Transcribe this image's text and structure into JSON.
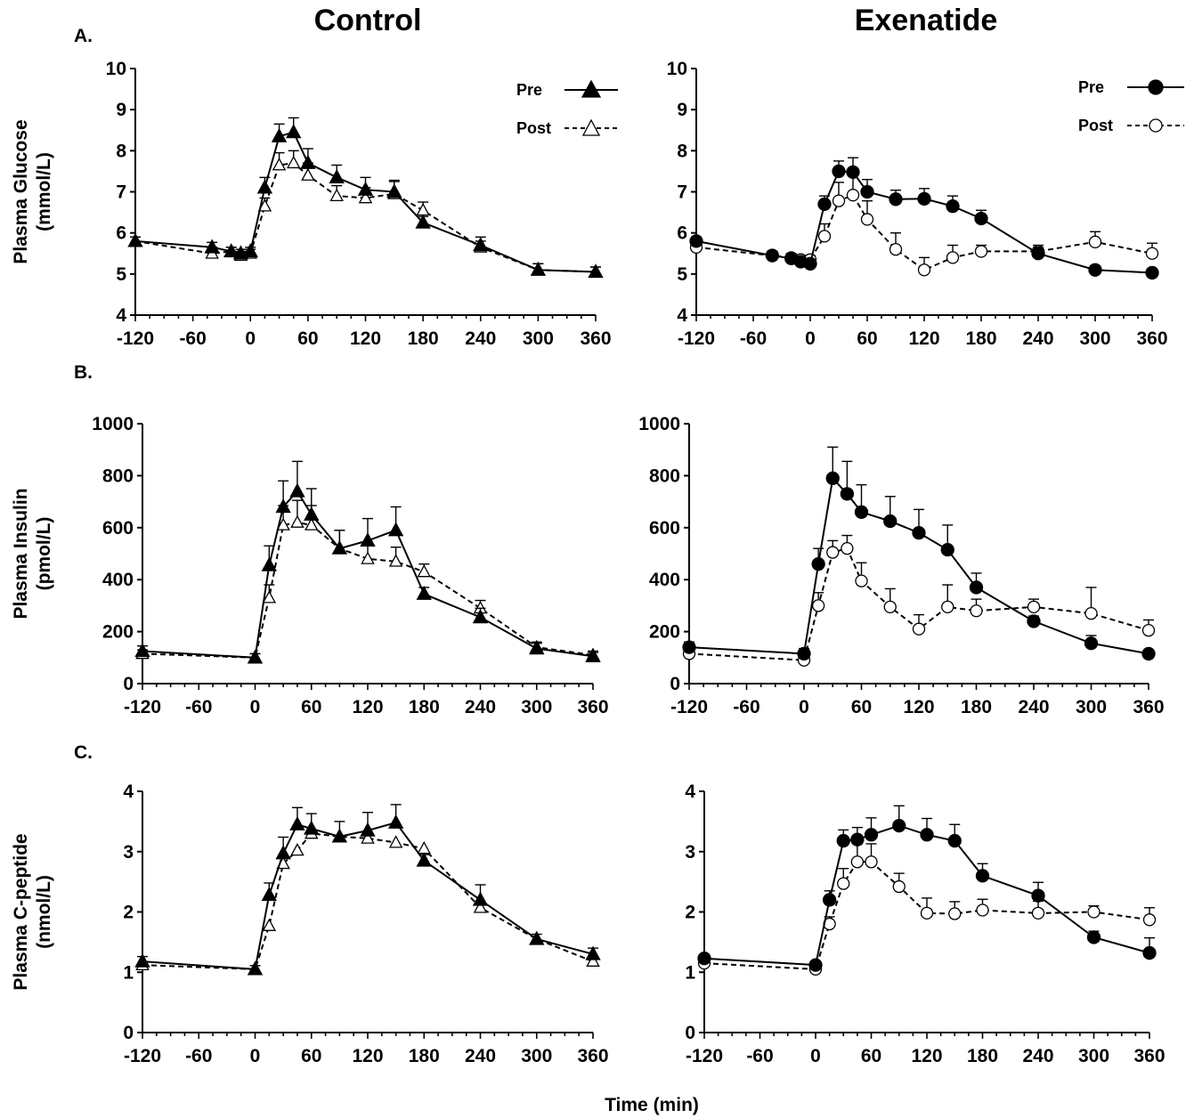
{
  "figure": {
    "column_titles": [
      "Control",
      "Exenatide"
    ],
    "panel_letters": [
      "A.",
      "B.",
      "C."
    ],
    "xlabel": "Time (min)"
  },
  "legend": {
    "control": [
      {
        "label": "Pre",
        "style": "solid",
        "marker": "filled-triangle"
      },
      {
        "label": "Post",
        "style": "dashed",
        "marker": "open-triangle"
      }
    ],
    "exenatide": [
      {
        "label": "Pre",
        "style": "solid",
        "marker": "filled-circle"
      },
      {
        "label": "Post",
        "style": "dashed",
        "marker": "open-circle"
      }
    ]
  },
  "chart_data": [
    {
      "type": "line",
      "id": "glucose-control",
      "title": "Control",
      "ylabel": [
        "Plasma Glucose",
        "(mmol/L)"
      ],
      "xlabel": "",
      "xlim": [
        -120,
        360
      ],
      "ylim": [
        4,
        10
      ],
      "xticks": [
        -120,
        -60,
        0,
        60,
        120,
        180,
        240,
        300,
        360
      ],
      "yticks": [
        4,
        5,
        6,
        7,
        8,
        9,
        10
      ],
      "marker": "triangle",
      "legend_position": "top-right",
      "series": [
        {
          "name": "Pre",
          "style": "solid",
          "x": [
            -120,
            -40,
            -20,
            -10,
            0,
            15,
            30,
            45,
            60,
            90,
            120,
            150,
            180,
            240,
            300,
            360
          ],
          "y": [
            5.8,
            5.65,
            5.55,
            5.5,
            5.55,
            7.1,
            8.35,
            8.45,
            7.7,
            7.35,
            7.05,
            7.0,
            6.25,
            5.7,
            5.1,
            5.05
          ],
          "err": [
            0.1,
            0.12,
            0.1,
            0.1,
            0.1,
            0.25,
            0.3,
            0.35,
            0.35,
            0.3,
            0.3,
            0.28,
            0.15,
            0.2,
            0.15,
            0.12
          ]
        },
        {
          "name": "Post",
          "style": "dashed",
          "x": [
            -120,
            -40,
            -20,
            -10,
            0,
            15,
            30,
            45,
            60,
            90,
            120,
            150,
            180,
            240,
            300,
            360
          ],
          "y": [
            5.8,
            5.5,
            5.55,
            5.45,
            5.5,
            6.65,
            7.65,
            7.7,
            7.4,
            6.9,
            6.85,
            6.95,
            6.55,
            5.65,
            5.1,
            5.05
          ],
          "err": [
            0.1,
            0.15,
            0.1,
            0.1,
            0.1,
            0.2,
            0.3,
            0.3,
            0.3,
            0.25,
            0.25,
            0.3,
            0.2,
            0.15,
            0.15,
            0.12
          ]
        }
      ]
    },
    {
      "type": "line",
      "id": "glucose-exenatide",
      "title": "Exenatide",
      "ylabel": [],
      "xlabel": "",
      "xlim": [
        -120,
        360
      ],
      "ylim": [
        4,
        10
      ],
      "xticks": [
        -120,
        -60,
        0,
        60,
        120,
        180,
        240,
        300,
        360
      ],
      "yticks": [
        4,
        5,
        6,
        7,
        8,
        9,
        10
      ],
      "marker": "circle",
      "legend_position": "top-right",
      "series": [
        {
          "name": "Pre",
          "style": "solid",
          "x": [
            -120,
            -40,
            -20,
            -10,
            0,
            15,
            30,
            45,
            60,
            90,
            120,
            150,
            180,
            240,
            300,
            360
          ],
          "y": [
            5.8,
            5.45,
            5.38,
            5.3,
            5.25,
            6.7,
            7.5,
            7.48,
            7.0,
            6.82,
            6.83,
            6.65,
            6.35,
            5.5,
            5.1,
            5.03
          ],
          "err": [
            0.1,
            0.1,
            0.1,
            0.1,
            0.1,
            0.2,
            0.25,
            0.35,
            0.3,
            0.22,
            0.25,
            0.25,
            0.2,
            0.15,
            0.1,
            0.1
          ]
        },
        {
          "name": "Post",
          "style": "dashed",
          "x": [
            -120,
            -40,
            -20,
            -10,
            0,
            15,
            30,
            45,
            60,
            90,
            120,
            150,
            180,
            240,
            300,
            360
          ],
          "y": [
            5.65,
            5.45,
            5.4,
            5.35,
            5.35,
            5.92,
            6.78,
            6.92,
            6.33,
            5.6,
            5.1,
            5.4,
            5.55,
            5.55,
            5.78,
            5.5
          ],
          "err": [
            0.1,
            0.1,
            0.1,
            0.1,
            0.1,
            0.3,
            0.45,
            0.55,
            0.45,
            0.4,
            0.3,
            0.3,
            0.15,
            0.15,
            0.25,
            0.25
          ]
        }
      ]
    },
    {
      "type": "line",
      "id": "insulin-control",
      "title": "",
      "ylabel": [
        "Plasma Insulin",
        "(pmol/L)"
      ],
      "xlabel": "",
      "xlim": [
        -120,
        360
      ],
      "ylim": [
        0,
        1000
      ],
      "xticks": [
        -120,
        -60,
        0,
        60,
        120,
        180,
        240,
        300,
        360
      ],
      "yticks": [
        0,
        200,
        400,
        600,
        800,
        1000
      ],
      "marker": "triangle",
      "series": [
        {
          "name": "Pre",
          "style": "solid",
          "x": [
            -120,
            0,
            15,
            30,
            45,
            60,
            90,
            120,
            150,
            180,
            240,
            300,
            360
          ],
          "y": [
            125,
            100,
            455,
            680,
            740,
            650,
            520,
            550,
            590,
            345,
            255,
            135,
            105
          ],
          "err": [
            20,
            15,
            75,
            100,
            115,
            100,
            70,
            85,
            90,
            25,
            35,
            20,
            15
          ]
        },
        {
          "name": "Post",
          "style": "dashed",
          "x": [
            -120,
            0,
            15,
            30,
            45,
            60,
            90,
            120,
            150,
            180,
            240,
            300,
            360
          ],
          "y": [
            115,
            100,
            330,
            610,
            620,
            610,
            520,
            480,
            470,
            430,
            290,
            140,
            110
          ],
          "err": [
            15,
            15,
            50,
            75,
            85,
            75,
            70,
            55,
            55,
            30,
            30,
            20,
            15
          ]
        }
      ]
    },
    {
      "type": "line",
      "id": "insulin-exenatide",
      "title": "",
      "ylabel": [],
      "xlabel": "",
      "xlim": [
        -120,
        360
      ],
      "ylim": [
        0,
        1000
      ],
      "xticks": [
        -120,
        -60,
        0,
        60,
        120,
        180,
        240,
        300,
        360
      ],
      "yticks": [
        0,
        200,
        400,
        600,
        800,
        1000
      ],
      "marker": "circle",
      "series": [
        {
          "name": "Pre",
          "style": "solid",
          "x": [
            -120,
            0,
            15,
            30,
            45,
            60,
            90,
            120,
            150,
            180,
            240,
            300,
            360
          ],
          "y": [
            140,
            115,
            460,
            790,
            730,
            660,
            625,
            580,
            515,
            370,
            240,
            155,
            115
          ],
          "err": [
            20,
            20,
            60,
            120,
            125,
            105,
            95,
            90,
            95,
            55,
            20,
            30,
            15
          ]
        },
        {
          "name": "Post",
          "style": "dashed",
          "x": [
            -120,
            0,
            15,
            30,
            45,
            60,
            90,
            120,
            150,
            180,
            240,
            300,
            360
          ],
          "y": [
            115,
            90,
            300,
            505,
            520,
            395,
            295,
            210,
            295,
            280,
            295,
            270,
            205
          ],
          "err": [
            15,
            15,
            50,
            45,
            50,
            70,
            70,
            55,
            85,
            45,
            30,
            100,
            40
          ]
        }
      ]
    },
    {
      "type": "line",
      "id": "cpeptide-control",
      "title": "",
      "ylabel": [
        "Plasma C-peptide",
        "(nmol/L)"
      ],
      "xlabel": "",
      "xlim": [
        -120,
        360
      ],
      "ylim": [
        0,
        4
      ],
      "xticks": [
        -120,
        -60,
        0,
        60,
        120,
        180,
        240,
        300,
        360
      ],
      "yticks": [
        0,
        1,
        2,
        3,
        4
      ],
      "marker": "triangle",
      "series": [
        {
          "name": "Pre",
          "style": "solid",
          "x": [
            -120,
            0,
            15,
            30,
            45,
            60,
            90,
            120,
            150,
            180,
            240,
            300,
            360
          ],
          "y": [
            1.18,
            1.05,
            2.28,
            2.97,
            3.45,
            3.38,
            3.25,
            3.35,
            3.48,
            2.85,
            2.2,
            1.55,
            1.3
          ],
          "err": [
            0.08,
            0.06,
            0.2,
            0.27,
            0.28,
            0.25,
            0.25,
            0.3,
            0.3,
            0.1,
            0.25,
            0.08,
            0.1
          ]
        },
        {
          "name": "Post",
          "style": "dashed",
          "x": [
            -120,
            0,
            15,
            30,
            45,
            60,
            90,
            120,
            150,
            180,
            240,
            300,
            360
          ],
          "y": [
            1.12,
            1.05,
            1.77,
            2.8,
            3.02,
            3.3,
            3.25,
            3.22,
            3.15,
            3.05,
            2.07,
            1.55,
            1.18
          ]
        }
      ]
    },
    {
      "type": "line",
      "id": "cpeptide-exenatide",
      "title": "",
      "ylabel": [],
      "xlabel": "Time (min)",
      "xlim": [
        -120,
        360
      ],
      "ylim": [
        0,
        4
      ],
      "xticks": [
        -120,
        -60,
        0,
        60,
        120,
        180,
        240,
        300,
        360
      ],
      "yticks": [
        0,
        1,
        2,
        3,
        4
      ],
      "marker": "circle",
      "series": [
        {
          "name": "Pre",
          "style": "solid",
          "x": [
            -120,
            0,
            15,
            30,
            45,
            60,
            90,
            120,
            150,
            180,
            240,
            300,
            360
          ],
          "y": [
            1.23,
            1.12,
            2.2,
            3.18,
            3.2,
            3.28,
            3.43,
            3.28,
            3.18,
            2.6,
            2.27,
            1.58,
            1.32
          ],
          "err": [
            0.06,
            0.06,
            0.15,
            0.18,
            0.2,
            0.28,
            0.33,
            0.27,
            0.27,
            0.2,
            0.22,
            0.1,
            0.25
          ]
        },
        {
          "name": "Post",
          "style": "dashed",
          "x": [
            -120,
            0,
            15,
            30,
            45,
            60,
            90,
            120,
            150,
            180,
            240,
            300,
            360
          ],
          "y": [
            1.15,
            1.05,
            1.8,
            2.47,
            2.83,
            2.83,
            2.42,
            1.98,
            1.97,
            2.03,
            1.98,
            2.0,
            1.87
          ],
          "err": [
            0.06,
            0.06,
            0.12,
            0.25,
            0.3,
            0.3,
            0.22,
            0.25,
            0.2,
            0.18,
            0.2,
            0.1,
            0.2
          ]
        }
      ]
    }
  ]
}
